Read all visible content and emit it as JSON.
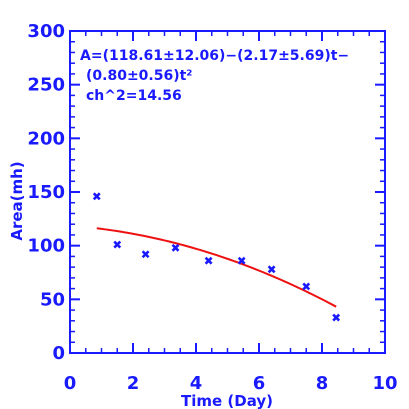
{
  "chart_data": {
    "type": "scatter",
    "xlabel": "Time (Day)",
    "ylabel": "Area(mh)",
    "xlim": [
      0,
      10
    ],
    "ylim": [
      0,
      300
    ],
    "x_ticks": [
      "0",
      "2",
      "4",
      "6",
      "8",
      "10"
    ],
    "y_ticks": [
      "0",
      "50",
      "100",
      "150",
      "200",
      "250",
      "300"
    ],
    "annotations": [
      "A=(118.61±12.06)−(2.17±5.69)t−",
      "(0.80±0.56)t²",
      "ch^2=14.56"
    ],
    "points": {
      "x": [
        0.85,
        1.5,
        2.4,
        3.35,
        4.4,
        5.45,
        6.4,
        7.5,
        8.45
      ],
      "y": [
        146,
        101,
        92,
        98,
        86,
        86,
        78,
        62,
        33
      ]
    },
    "fit": {
      "a": 118.61,
      "b": -2.17,
      "c": -0.8,
      "x_range": [
        0.85,
        8.45
      ]
    },
    "colors": {
      "axis": "#1a1aff",
      "points": "#1a1aff",
      "fit": "#ee1111"
    },
    "grid": false
  }
}
